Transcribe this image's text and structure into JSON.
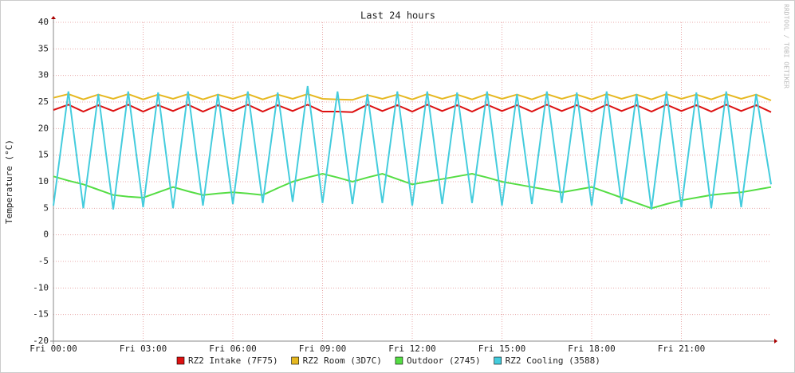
{
  "chart_data": {
    "type": "line",
    "title": "Last 24 hours",
    "ylabel": "Temperature (°C)",
    "watermark": "RRDTOOL / TOBI OETIKER",
    "x": [
      0,
      0.5,
      1,
      1.5,
      2,
      2.5,
      3,
      3.5,
      4,
      4.5,
      5,
      5.5,
      6,
      6.5,
      7,
      7.5,
      8,
      8.5,
      9,
      9.5,
      10,
      10.5,
      11,
      11.5,
      12,
      12.5,
      13,
      13.5,
      14,
      14.5,
      15,
      15.5,
      16,
      16.5,
      17,
      17.5,
      18,
      18.5,
      19,
      19.5,
      20,
      20.5,
      21,
      21.5,
      22,
      22.5,
      23,
      23.5,
      24
    ],
    "xlim": [
      0,
      24
    ],
    "xticks": [
      {
        "value": 0,
        "label": "Fri 00:00"
      },
      {
        "value": 3,
        "label": "Fri 03:00"
      },
      {
        "value": 6,
        "label": "Fri 06:00"
      },
      {
        "value": 9,
        "label": "Fri 09:00"
      },
      {
        "value": 12,
        "label": "Fri 12:00"
      },
      {
        "value": 15,
        "label": "Fri 15:00"
      },
      {
        "value": 18,
        "label": "Fri 18:00"
      },
      {
        "value": 21,
        "label": "Fri 21:00"
      }
    ],
    "ylim": [
      -20,
      40
    ],
    "yticks": [
      -20,
      -15,
      -10,
      -5,
      0,
      5,
      10,
      15,
      20,
      25,
      30,
      35,
      40
    ],
    "grid": true,
    "legend": "bottom",
    "series": [
      {
        "name": "RZ2 Intake (7F75)",
        "color": "#dd1111",
        "values": [
          23.5,
          24.5,
          23.2,
          24.4,
          23.3,
          24.5,
          23.2,
          24.4,
          23.3,
          24.5,
          23.2,
          24.4,
          23.3,
          24.5,
          23.2,
          24.4,
          23.3,
          24.5,
          23.2,
          23.2,
          23.1,
          24.5,
          23.3,
          24.4,
          23.2,
          24.5,
          23.3,
          24.4,
          23.2,
          24.5,
          23.3,
          24.4,
          23.2,
          24.5,
          23.3,
          24.4,
          23.2,
          24.5,
          23.3,
          24.4,
          23.2,
          24.5,
          23.3,
          24.4,
          23.2,
          24.5,
          23.3,
          24.4,
          23.1
        ]
      },
      {
        "name": "RZ2 Room (3D7C)",
        "color": "#e6b820",
        "values": [
          25.8,
          26.5,
          25.5,
          26.4,
          25.6,
          26.5,
          25.5,
          26.4,
          25.6,
          26.5,
          25.5,
          26.4,
          25.6,
          26.5,
          25.5,
          26.4,
          25.6,
          26.5,
          25.6,
          25.5,
          25.4,
          26.3,
          25.6,
          26.4,
          25.5,
          26.5,
          25.6,
          26.4,
          25.5,
          26.5,
          25.6,
          26.4,
          25.5,
          26.5,
          25.6,
          26.4,
          25.5,
          26.5,
          25.6,
          26.4,
          25.5,
          26.5,
          25.6,
          26.4,
          25.5,
          26.5,
          25.6,
          26.4,
          25.3
        ]
      },
      {
        "name": "Outdoor (2745)",
        "color": "#55dd44",
        "values": [
          11,
          10.2,
          9.5,
          8.5,
          7.5,
          7.2,
          7,
          8,
          9,
          8.2,
          7.5,
          7.8,
          8,
          7.8,
          7.5,
          8.8,
          10,
          10.8,
          11.5,
          10.8,
          10,
          10.8,
          11.5,
          10.5,
          9.5,
          10,
          10.5,
          11,
          11.5,
          10.8,
          10,
          9.5,
          9,
          8.5,
          8,
          8.5,
          9,
          8,
          7,
          6,
          5,
          5.8,
          6.5,
          7,
          7.5,
          7.8,
          8,
          8.5,
          9
        ]
      },
      {
        "name": "RZ2 Cooling (3588)",
        "color": "#44ccdd",
        "values": [
          5.5,
          27,
          5,
          26.5,
          4.8,
          27,
          5.2,
          26.8,
          5,
          27,
          5.5,
          26.5,
          5.8,
          27,
          6,
          26.8,
          6.2,
          28,
          6,
          27,
          5.8,
          26.5,
          6,
          27,
          5.5,
          27,
          5.8,
          26.8,
          6,
          27,
          5.5,
          26.5,
          5.8,
          27,
          6,
          26.8,
          5.5,
          27,
          5.8,
          26.5,
          4.8,
          27,
          5.2,
          26.8,
          5,
          27,
          5.2,
          26.5,
          9.5
        ]
      }
    ]
  }
}
